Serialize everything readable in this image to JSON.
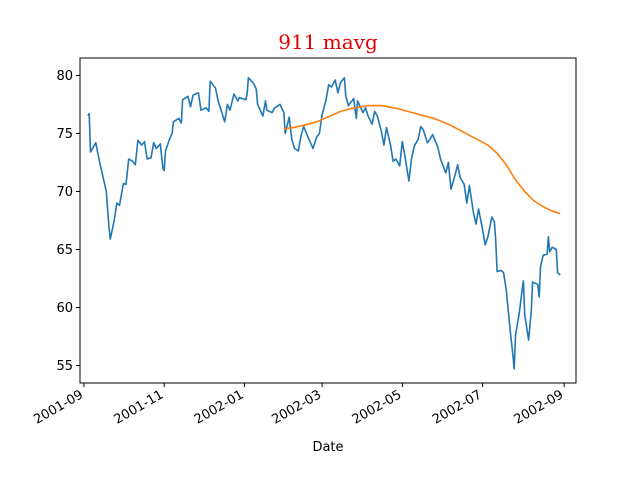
{
  "chart_data": {
    "type": "line",
    "title": "911 mavg",
    "xlabel": "Date",
    "ylabel": "",
    "xlim": [
      "2001-08-29",
      "2002-09-10"
    ],
    "ylim": [
      53.5,
      81.5
    ],
    "grid": false,
    "legend": "none",
    "colors": {
      "title": "#e00000",
      "price": "#1f77b4",
      "mavg": "#ff7f0e"
    },
    "x_ticks": [
      "2001-09",
      "2001-11",
      "2002-01",
      "2002-03",
      "2002-05",
      "2002-07",
      "2002-09"
    ],
    "y_ticks": [
      55,
      60,
      65,
      70,
      75,
      80
    ],
    "series": [
      {
        "points": [
          [
            "2001-09-04",
            76.5
          ],
          [
            "2001-09-05",
            76.7
          ],
          [
            "2001-09-06",
            73.4
          ],
          [
            "2001-09-10",
            74.2
          ],
          [
            "2001-09-13",
            72.5
          ],
          [
            "2001-09-17",
            70.5
          ],
          [
            "2001-09-18",
            70.0
          ],
          [
            "2001-09-20",
            67.0
          ],
          [
            "2001-09-21",
            65.9
          ],
          [
            "2001-09-24",
            67.5
          ],
          [
            "2001-09-26",
            69.0
          ],
          [
            "2001-09-28",
            68.8
          ],
          [
            "2001-10-01",
            70.7
          ],
          [
            "2001-10-03",
            70.6
          ],
          [
            "2001-10-05",
            72.8
          ],
          [
            "2001-10-08",
            72.6
          ],
          [
            "2001-10-10",
            72.3
          ],
          [
            "2001-10-12",
            74.4
          ],
          [
            "2001-10-15",
            74.0
          ],
          [
            "2001-10-17",
            74.3
          ],
          [
            "2001-10-19",
            72.8
          ],
          [
            "2001-10-22",
            72.9
          ],
          [
            "2001-10-24",
            74.2
          ],
          [
            "2001-10-26",
            73.7
          ],
          [
            "2001-10-29",
            74.1
          ],
          [
            "2001-10-31",
            72.0
          ],
          [
            "2001-11-01",
            71.8
          ],
          [
            "2001-11-02",
            73.5
          ],
          [
            "2001-11-05",
            74.5
          ],
          [
            "2001-11-07",
            75.0
          ],
          [
            "2001-11-08",
            76.0
          ],
          [
            "2001-11-12",
            76.3
          ],
          [
            "2001-11-14",
            75.9
          ],
          [
            "2001-11-15",
            77.9
          ],
          [
            "2001-11-19",
            78.2
          ],
          [
            "2001-11-21",
            77.3
          ],
          [
            "2001-11-23",
            78.3
          ],
          [
            "2001-11-27",
            78.5
          ],
          [
            "2001-11-29",
            77.0
          ],
          [
            "2001-12-03",
            77.2
          ],
          [
            "2001-12-05",
            76.9
          ],
          [
            "2001-12-06",
            79.5
          ],
          [
            "2001-12-10",
            78.9
          ],
          [
            "2001-12-12",
            77.8
          ],
          [
            "2001-12-14",
            77.1
          ],
          [
            "2001-12-17",
            76.0
          ],
          [
            "2001-12-19",
            77.5
          ],
          [
            "2001-12-21",
            77.0
          ],
          [
            "2001-12-24",
            78.4
          ],
          [
            "2001-12-27",
            77.8
          ],
          [
            "2001-12-28",
            78.1
          ],
          [
            "2002-01-02",
            77.9
          ],
          [
            "2002-01-03",
            78.4
          ],
          [
            "2002-01-04",
            79.8
          ],
          [
            "2002-01-08",
            79.3
          ],
          [
            "2002-01-10",
            78.8
          ],
          [
            "2002-01-11",
            77.5
          ],
          [
            "2002-01-15",
            76.5
          ],
          [
            "2002-01-17",
            77.8
          ],
          [
            "2002-01-18",
            77.0
          ],
          [
            "2002-01-22",
            76.8
          ],
          [
            "2002-01-24",
            77.2
          ],
          [
            "2002-01-28",
            77.5
          ],
          [
            "2002-01-31",
            76.8
          ],
          [
            "2002-02-01",
            75.0
          ],
          [
            "2002-02-04",
            76.4
          ],
          [
            "2002-02-06",
            74.5
          ],
          [
            "2002-02-08",
            73.7
          ],
          [
            "2002-02-11",
            73.5
          ],
          [
            "2002-02-13",
            74.8
          ],
          [
            "2002-02-15",
            75.6
          ],
          [
            "2002-02-19",
            74.5
          ],
          [
            "2002-02-21",
            74.0
          ],
          [
            "2002-02-22",
            73.7
          ],
          [
            "2002-02-25",
            74.7
          ],
          [
            "2002-02-27",
            75.0
          ],
          [
            "2002-03-01",
            76.6
          ],
          [
            "2002-03-04",
            77.9
          ],
          [
            "2002-03-06",
            79.2
          ],
          [
            "2002-03-08",
            79.0
          ],
          [
            "2002-03-11",
            79.6
          ],
          [
            "2002-03-13",
            78.5
          ],
          [
            "2002-03-15",
            79.4
          ],
          [
            "2002-03-18",
            79.8
          ],
          [
            "2002-03-19",
            78.2
          ],
          [
            "2002-03-21",
            77.4
          ],
          [
            "2002-03-25",
            78.0
          ],
          [
            "2002-03-27",
            76.3
          ],
          [
            "2002-03-28",
            77.8
          ],
          [
            "2002-04-01",
            76.8
          ],
          [
            "2002-04-03",
            77.2
          ],
          [
            "2002-04-05",
            76.5
          ],
          [
            "2002-04-08",
            75.8
          ],
          [
            "2002-04-10",
            76.9
          ],
          [
            "2002-04-12",
            76.5
          ],
          [
            "2002-04-15",
            75.2
          ],
          [
            "2002-04-17",
            74.0
          ],
          [
            "2002-04-19",
            75.5
          ],
          [
            "2002-04-22",
            74.0
          ],
          [
            "2002-04-24",
            72.6
          ],
          [
            "2002-04-26",
            72.8
          ],
          [
            "2002-04-29",
            72.2
          ],
          [
            "2002-05-01",
            74.3
          ],
          [
            "2002-05-03",
            73.0
          ],
          [
            "2002-05-06",
            70.9
          ],
          [
            "2002-05-08",
            72.8
          ],
          [
            "2002-05-10",
            73.9
          ],
          [
            "2002-05-13",
            74.5
          ],
          [
            "2002-05-15",
            75.6
          ],
          [
            "2002-05-17",
            75.3
          ],
          [
            "2002-05-20",
            74.2
          ],
          [
            "2002-05-22",
            74.5
          ],
          [
            "2002-05-24",
            74.9
          ],
          [
            "2002-05-28",
            73.8
          ],
          [
            "2002-05-30",
            72.8
          ],
          [
            "2002-06-03",
            71.6
          ],
          [
            "2002-06-05",
            72.5
          ],
          [
            "2002-06-07",
            70.2
          ],
          [
            "2002-06-10",
            71.4
          ],
          [
            "2002-06-12",
            72.3
          ],
          [
            "2002-06-14",
            71.2
          ],
          [
            "2002-06-17",
            70.6
          ],
          [
            "2002-06-19",
            69.0
          ],
          [
            "2002-06-21",
            70.5
          ],
          [
            "2002-06-24",
            68.2
          ],
          [
            "2002-06-26",
            67.2
          ],
          [
            "2002-06-28",
            68.5
          ],
          [
            "2002-07-01",
            66.7
          ],
          [
            "2002-07-03",
            65.4
          ],
          [
            "2002-07-05",
            66.1
          ],
          [
            "2002-07-08",
            67.8
          ],
          [
            "2002-07-10",
            67.4
          ],
          [
            "2002-07-11",
            65.8
          ],
          [
            "2002-07-12",
            63.1
          ],
          [
            "2002-07-15",
            63.2
          ],
          [
            "2002-07-17",
            63.0
          ],
          [
            "2002-07-19",
            61.5
          ],
          [
            "2002-07-22",
            58.0
          ],
          [
            "2002-07-24",
            56.0
          ],
          [
            "2002-07-25",
            54.7
          ],
          [
            "2002-07-26",
            57.6
          ],
          [
            "2002-07-29",
            59.6
          ],
          [
            "2002-07-31",
            61.5
          ],
          [
            "2002-08-01",
            62.3
          ],
          [
            "2002-08-02",
            59.4
          ],
          [
            "2002-08-05",
            57.2
          ],
          [
            "2002-08-07",
            59.7
          ],
          [
            "2002-08-08",
            62.2
          ],
          [
            "2002-08-12",
            62.0
          ],
          [
            "2002-08-13",
            60.9
          ],
          [
            "2002-08-14",
            63.5
          ],
          [
            "2002-08-16",
            64.5
          ],
          [
            "2002-08-19",
            64.6
          ],
          [
            "2002-08-20",
            66.1
          ],
          [
            "2002-08-21",
            64.8
          ],
          [
            "2002-08-23",
            65.2
          ],
          [
            "2002-08-26",
            65.0
          ],
          [
            "2002-08-27",
            63.0
          ],
          [
            "2002-08-29",
            62.8
          ]
        ]
      },
      {
        "points": [
          [
            "2002-01-31",
            75.4
          ],
          [
            "2002-02-07",
            75.5
          ],
          [
            "2002-02-15",
            75.7
          ],
          [
            "2002-02-25",
            76.0
          ],
          [
            "2002-03-05",
            76.4
          ],
          [
            "2002-03-15",
            76.9
          ],
          [
            "2002-03-25",
            77.2
          ],
          [
            "2002-04-05",
            77.4
          ],
          [
            "2002-04-15",
            77.4
          ],
          [
            "2002-04-25",
            77.2
          ],
          [
            "2002-05-05",
            76.9
          ],
          [
            "2002-05-15",
            76.6
          ],
          [
            "2002-05-25",
            76.3
          ],
          [
            "2002-06-05",
            75.8
          ],
          [
            "2002-06-15",
            75.2
          ],
          [
            "2002-06-25",
            74.6
          ],
          [
            "2002-07-05",
            74.0
          ],
          [
            "2002-07-12",
            73.3
          ],
          [
            "2002-07-19",
            72.3
          ],
          [
            "2002-07-26",
            71.0
          ],
          [
            "2002-08-02",
            70.0
          ],
          [
            "2002-08-09",
            69.2
          ],
          [
            "2002-08-16",
            68.7
          ],
          [
            "2002-08-23",
            68.3
          ],
          [
            "2002-08-29",
            68.1
          ]
        ]
      }
    ]
  }
}
